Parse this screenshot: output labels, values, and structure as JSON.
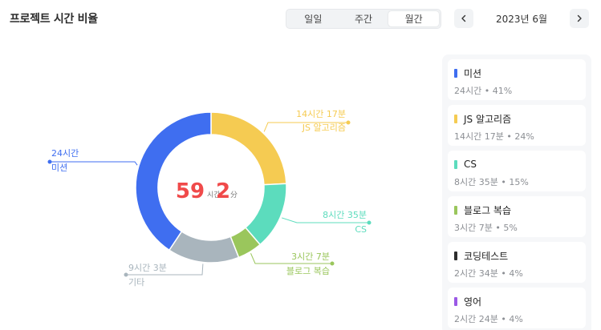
{
  "header": {
    "title": "프로젝트 시간 비율",
    "tabs": [
      {
        "label": "일일",
        "active": false
      },
      {
        "label": "주간",
        "active": false
      },
      {
        "label": "월간",
        "active": true
      }
    ],
    "month": "2023년 6월"
  },
  "chart_data": {
    "type": "pie",
    "donut": true,
    "center": {
      "hours": "59",
      "hours_unit": "시간",
      "minutes": "2",
      "minutes_unit": "分"
    },
    "slices": [
      {
        "name": "JS 알고리즘",
        "value_label": "14시간 17분",
        "minutes": 857,
        "color": "#f5cb52"
      },
      {
        "name": "CS",
        "value_label": "8시간 35분",
        "minutes": 515,
        "color": "#5cdcbd"
      },
      {
        "name": "블로그 복습",
        "value_label": "3시간 7분",
        "minutes": 187,
        "color": "#9ac65c"
      },
      {
        "name": "기타",
        "value_label": "9시간 3분",
        "minutes": 543,
        "color": "#a9b5bd"
      },
      {
        "name": "미션",
        "value_label": "24시간",
        "minutes": 1440,
        "color": "#3f6ef0"
      }
    ]
  },
  "legend": [
    {
      "name": "미션",
      "detail": "24시간 • 41%",
      "color": "#3f6ef0"
    },
    {
      "name": "JS 알고리즘",
      "detail": "14시간 17분 • 24%",
      "color": "#f5cb52"
    },
    {
      "name": "CS",
      "detail": "8시간 35분 • 15%",
      "color": "#5cdcbd"
    },
    {
      "name": "블로그 복습",
      "detail": "3시간 7분 • 5%",
      "color": "#9ac65c"
    },
    {
      "name": "코딩테스트",
      "detail": "2시간 34분 • 4%",
      "color": "#2d2d2d"
    },
    {
      "name": "영어",
      "detail": "2시간 24분 • 4%",
      "color": "#9b59e6"
    }
  ]
}
